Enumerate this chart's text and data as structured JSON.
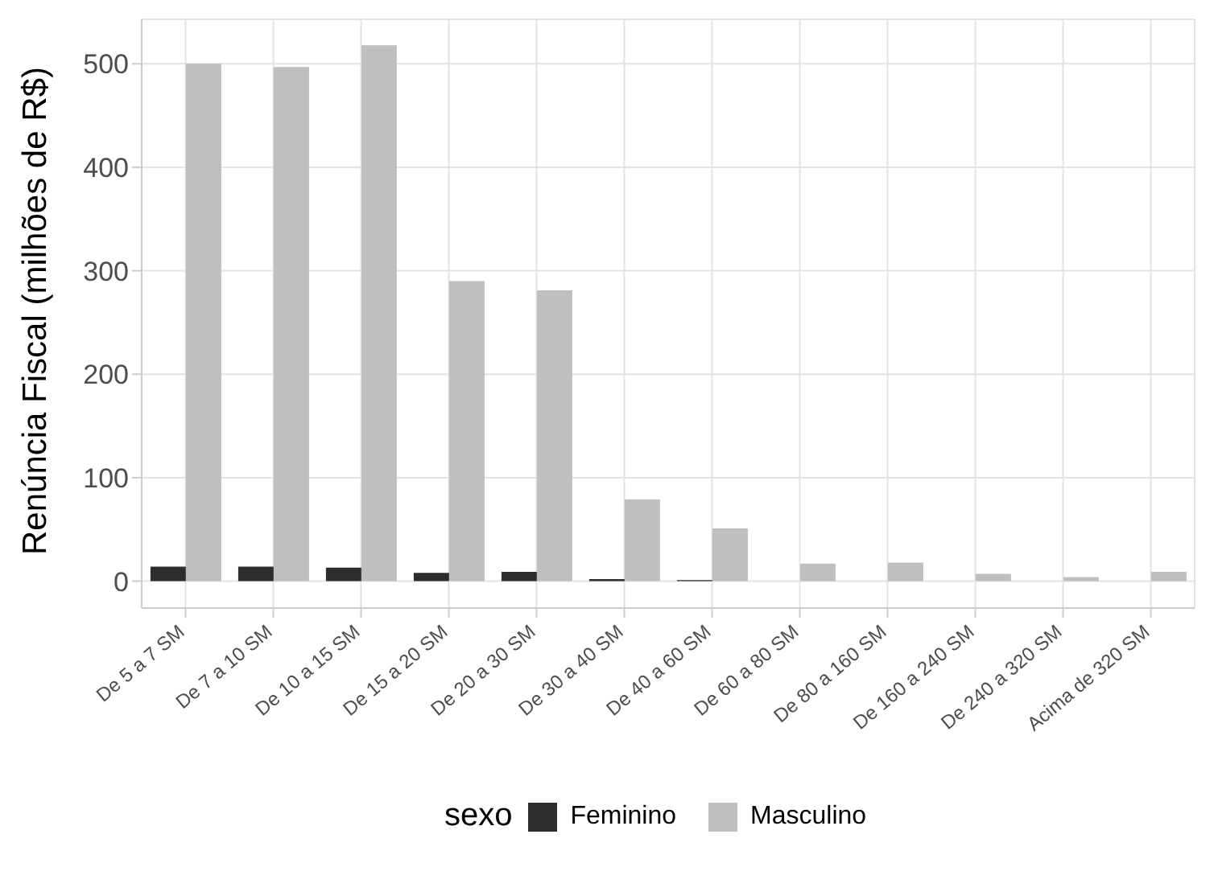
{
  "chart_data": {
    "type": "bar",
    "ylabel": "Renúncia Fiscal (milhões de R$)",
    "legend_title": "sexo",
    "categories": [
      "De 5 a 7 SM",
      "De 7 a 10 SM",
      "De 10 a 15 SM",
      "De 15 a 20 SM",
      "De 20 a 30 SM",
      "De 30 a 40 SM",
      "De 40 a 60 SM",
      "De 60 a 80 SM",
      "De 80 a 160 SM",
      "De 160 a 240 SM",
      "De 240 a 320 SM",
      "Acima de 320 SM"
    ],
    "series": [
      {
        "name": "Feminino",
        "color": "#2b2d2f",
        "values": [
          14,
          14,
          13,
          8,
          9,
          2,
          1,
          0,
          0,
          0,
          0,
          0
        ]
      },
      {
        "name": "Masculino",
        "color": "#bfbfbf",
        "values": [
          500,
          497,
          518,
          290,
          281,
          79,
          51,
          17,
          18,
          7,
          4,
          9
        ]
      }
    ],
    "ylim": [
      -26,
      543
    ],
    "yticks": [
      0,
      100,
      200,
      300,
      400,
      500
    ],
    "grid": true,
    "legend": "bottom"
  }
}
